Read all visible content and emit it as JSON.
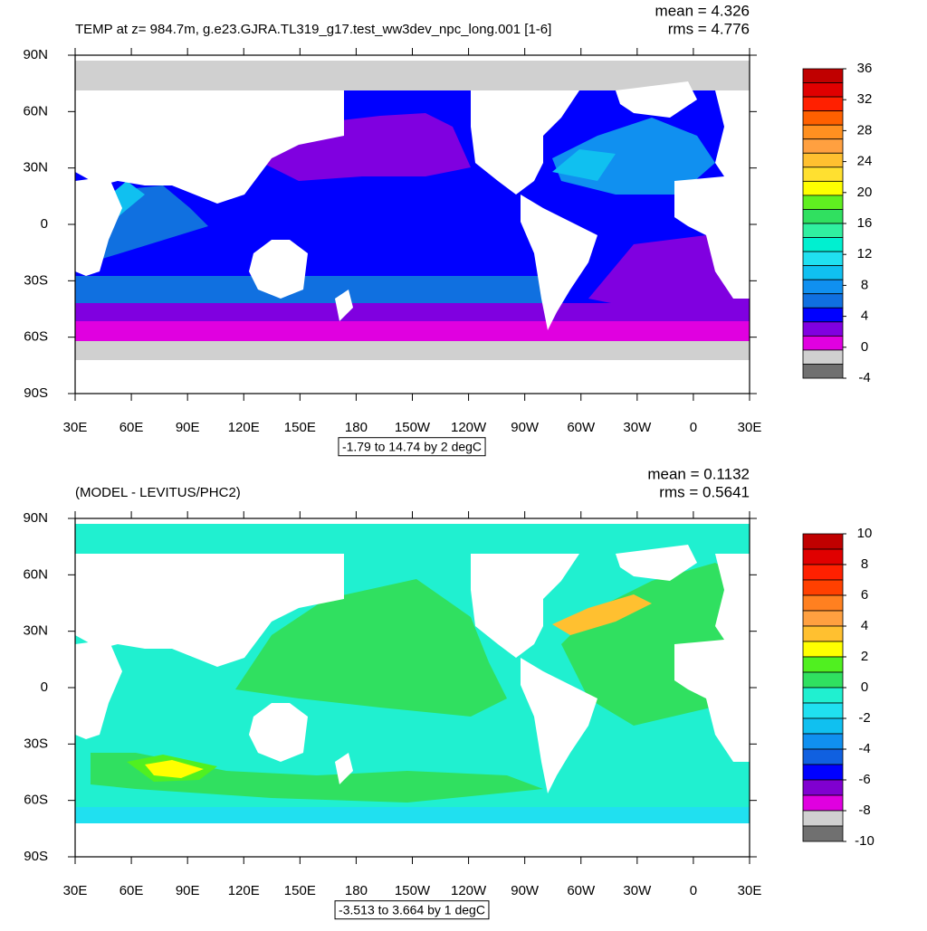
{
  "panels": [
    {
      "title": "TEMP at z= 984.7m, g.e23.GJRA.TL319_g17.test_ww3dev_npc_long.001 [1-6]",
      "mean_text": "mean = 4.326",
      "rms_text": "rms = 4.776",
      "range_label": "-1.79 to 14.74 by 2 degC",
      "xlim": [
        30,
        390
      ],
      "ylim": [
        -90,
        90
      ],
      "xticks": [
        {
          "value": 30,
          "label": "30E"
        },
        {
          "value": 60,
          "label": "60E"
        },
        {
          "value": 90,
          "label": "90E"
        },
        {
          "value": 120,
          "label": "120E"
        },
        {
          "value": 150,
          "label": "150E"
        },
        {
          "value": 180,
          "label": "180"
        },
        {
          "value": 210,
          "label": "150W"
        },
        {
          "value": 240,
          "label": "120W"
        },
        {
          "value": 270,
          "label": "90W"
        },
        {
          "value": 300,
          "label": "60W"
        },
        {
          "value": 330,
          "label": "30W"
        },
        {
          "value": 360,
          "label": "0"
        },
        {
          "value": 390,
          "label": "30E"
        }
      ],
      "yticks": [
        {
          "value": 90,
          "label": "90N"
        },
        {
          "value": 60,
          "label": "60N"
        },
        {
          "value": 30,
          "label": "30N"
        },
        {
          "value": 0,
          "label": "0"
        },
        {
          "value": -30,
          "label": "30S"
        },
        {
          "value": -60,
          "label": "60S"
        },
        {
          "value": -90,
          "label": "90S"
        }
      ],
      "colorbar": {
        "levels": [
          36,
          32,
          28,
          24,
          20,
          16,
          12,
          8,
          4,
          0,
          -4
        ],
        "colors": [
          "#c00000",
          "#e00000",
          "#ff2000",
          "#ff6000",
          "#ff9020",
          "#ffa040",
          "#ffc030",
          "#ffe030",
          "#ffff00",
          "#60f020",
          "#30e060",
          "#30f0a0",
          "#00f0d0",
          "#20e0f0",
          "#10c0f0",
          "#1090f0",
          "#1070e0",
          "#0000ff",
          "#8000e0",
          "#e000e0",
          "#d0d0d0",
          "#707070"
        ]
      }
    },
    {
      "title": "(MODEL - LEVITUS/PHC2)",
      "mean_text": "mean = 0.1132",
      "rms_text": "rms = 0.5641",
      "range_label": "-3.513 to 3.664 by 1 degC",
      "xlim": [
        30,
        390
      ],
      "ylim": [
        -90,
        90
      ],
      "xticks": [
        {
          "value": 30,
          "label": "30E"
        },
        {
          "value": 60,
          "label": "60E"
        },
        {
          "value": 90,
          "label": "90E"
        },
        {
          "value": 120,
          "label": "120E"
        },
        {
          "value": 150,
          "label": "150E"
        },
        {
          "value": 180,
          "label": "180"
        },
        {
          "value": 210,
          "label": "150W"
        },
        {
          "value": 240,
          "label": "120W"
        },
        {
          "value": 270,
          "label": "90W"
        },
        {
          "value": 300,
          "label": "60W"
        },
        {
          "value": 330,
          "label": "30W"
        },
        {
          "value": 360,
          "label": "0"
        },
        {
          "value": 390,
          "label": "30E"
        }
      ],
      "yticks": [
        {
          "value": 90,
          "label": "90N"
        },
        {
          "value": 60,
          "label": "60N"
        },
        {
          "value": 30,
          "label": "30N"
        },
        {
          "value": 0,
          "label": "0"
        },
        {
          "value": -30,
          "label": "30S"
        },
        {
          "value": -60,
          "label": "60S"
        },
        {
          "value": -90,
          "label": "90S"
        }
      ],
      "colorbar": {
        "levels": [
          10,
          8,
          6,
          4,
          2,
          0,
          -2,
          -4,
          -6,
          -8,
          -10
        ],
        "colors": [
          "#c00000",
          "#e00000",
          "#ff2000",
          "#ff4000",
          "#ff8020",
          "#ffa040",
          "#ffc030",
          "#ffff00",
          "#50f020",
          "#30e060",
          "#20f0d0",
          "#20e0f0",
          "#10c0f0",
          "#1090f0",
          "#1060e0",
          "#0000ff",
          "#8000d0",
          "#e000e0",
          "#d0d0d0",
          "#707070"
        ]
      }
    }
  ]
}
